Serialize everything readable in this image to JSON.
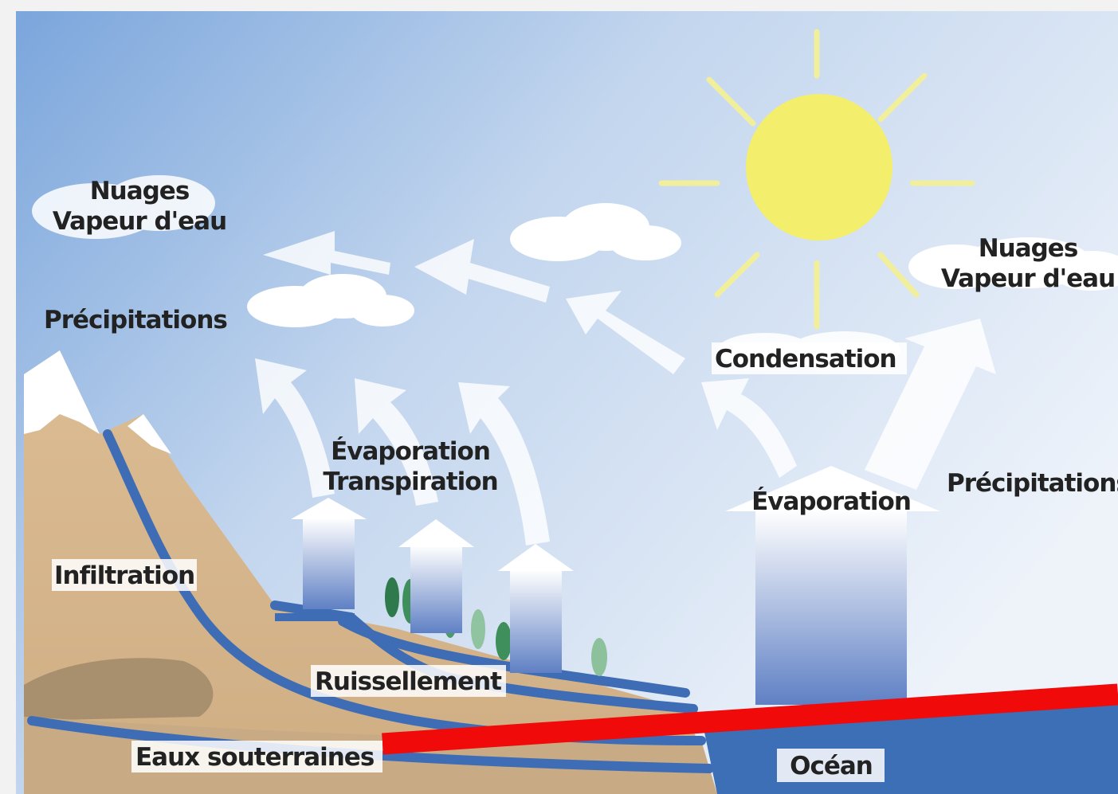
{
  "labels": {
    "clouds_left": [
      "Nuages",
      "Vapeur d'eau"
    ],
    "precipitations_left": "Précipitations",
    "clouds_right": [
      "Nuages",
      "Vapeur d'eau"
    ],
    "condensation": "Condensation",
    "evaporation_transpiration": [
      "Évaporation",
      "Transpiration"
    ],
    "evaporation": "Évaporation",
    "precipitations_right": "Précipitations",
    "infiltration": "Infiltration",
    "ruissellement": "Ruissellement",
    "groundwater": "Eaux souterraines",
    "ocean": "Océan"
  }
}
